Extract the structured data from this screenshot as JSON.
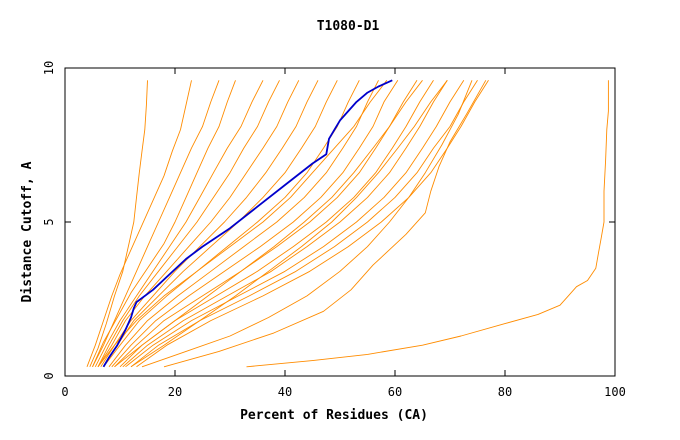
{
  "chart_data": {
    "type": "line",
    "title": "T1080-D1",
    "xlabel": "Percent of Residues (CA)",
    "ylabel": "Distance Cutoff, A",
    "xlim": [
      0,
      100
    ],
    "ylim": [
      0,
      10
    ],
    "xticks": [
      "0",
      "20",
      "40",
      "60",
      "80",
      "100"
    ],
    "yticks": [
      "0",
      "5",
      "10"
    ],
    "grid": false,
    "legend": "none",
    "colors": {
      "highlight": "#0000cc",
      "others": "#ff8c00"
    },
    "series": [
      {
        "role": "highlight",
        "x": [
          7,
          8,
          9.5,
          11,
          12,
          12.5,
          13,
          16,
          19,
          22,
          25,
          30,
          35,
          40,
          45,
          47.5,
          48,
          50,
          53,
          55,
          57,
          59.5
        ],
        "y": [
          0.3,
          0.6,
          1,
          1.5,
          1.9,
          2.2,
          2.4,
          2.8,
          3.3,
          3.8,
          4.2,
          4.8,
          5.5,
          6.2,
          6.9,
          7.2,
          7.7,
          8.3,
          8.9,
          9.2,
          9.4,
          9.6
        ]
      },
      {
        "role": "other",
        "x": [
          4.5,
          6,
          7.5,
          9,
          10.5,
          11.5,
          12.5,
          13,
          13.5,
          14,
          14.5,
          14.8,
          15
        ],
        "y": [
          0.3,
          0.9,
          1.7,
          2.6,
          3.4,
          4.2,
          5,
          5.8,
          6.6,
          7.3,
          8,
          8.8,
          9.6
        ]
      },
      {
        "role": "other",
        "x": [
          4,
          5.5,
          7,
          8.5,
          10,
          12,
          14,
          16,
          18,
          19.5,
          21,
          22,
          23
        ],
        "y": [
          0.3,
          1,
          1.8,
          2.6,
          3.3,
          4.1,
          4.9,
          5.7,
          6.5,
          7.3,
          8,
          8.8,
          9.6
        ]
      },
      {
        "role": "other",
        "x": [
          5,
          7,
          9,
          11,
          13,
          15,
          17,
          19,
          21,
          23,
          25,
          26.5,
          28
        ],
        "y": [
          0.3,
          1,
          1.8,
          2.6,
          3.4,
          4.2,
          5,
          5.8,
          6.6,
          7.4,
          8.1,
          8.9,
          9.6
        ]
      },
      {
        "role": "other",
        "x": [
          5,
          7,
          9.5,
          12,
          15,
          18,
          20,
          22,
          24,
          26,
          28,
          29.5,
          31
        ],
        "y": [
          0.3,
          1.1,
          1.9,
          2.7,
          3.5,
          4.3,
          5,
          5.8,
          6.6,
          7.4,
          8.1,
          8.9,
          9.6
        ]
      },
      {
        "role": "other",
        "x": [
          5.5,
          7.5,
          10,
          13,
          16,
          19,
          22,
          24.5,
          27,
          29.5,
          32,
          34,
          36
        ],
        "y": [
          0.3,
          1,
          1.8,
          2.6,
          3.4,
          4.2,
          5,
          5.8,
          6.6,
          7.4,
          8.1,
          8.9,
          9.6
        ]
      },
      {
        "role": "other",
        "x": [
          6,
          8,
          10.5,
          13.5,
          17,
          20.5,
          24,
          27,
          30,
          32.5,
          35,
          37,
          39
        ],
        "y": [
          0.3,
          1,
          1.8,
          2.6,
          3.4,
          4.2,
          5,
          5.8,
          6.6,
          7.4,
          8.1,
          8.9,
          9.6
        ]
      },
      {
        "role": "other",
        "x": [
          6,
          8.5,
          11,
          14.5,
          18.5,
          22.5,
          26.5,
          30,
          33,
          36,
          38.5,
          40.5,
          42.5
        ],
        "y": [
          0.3,
          1,
          1.8,
          2.6,
          3.4,
          4.2,
          5,
          5.8,
          6.6,
          7.4,
          8.1,
          8.9,
          9.6
        ]
      },
      {
        "role": "other",
        "x": [
          6.5,
          9,
          12,
          16,
          20,
          24.5,
          29,
          33,
          36.5,
          39.5,
          42,
          44,
          46
        ],
        "y": [
          0.3,
          1,
          1.8,
          2.6,
          3.4,
          4.2,
          5,
          5.8,
          6.6,
          7.4,
          8.1,
          8.9,
          9.6
        ]
      },
      {
        "role": "other",
        "x": [
          7,
          9.5,
          12.5,
          17,
          21.5,
          26.5,
          31.5,
          36,
          40,
          43,
          45.5,
          47.5,
          49.5
        ],
        "y": [
          0.3,
          1,
          1.8,
          2.6,
          3.4,
          4.2,
          5,
          5.8,
          6.6,
          7.4,
          8.1,
          8.9,
          9.6
        ]
      },
      {
        "role": "other",
        "x": [
          7,
          10,
          13.5,
          18.5,
          24,
          29.5,
          35,
          40,
          44,
          47,
          49.5,
          51.5,
          53.5
        ],
        "y": [
          0.3,
          1,
          1.8,
          2.6,
          3.4,
          4.2,
          5,
          5.8,
          6.6,
          7.4,
          8.1,
          8.9,
          9.6
        ]
      },
      {
        "role": "other",
        "x": [
          8,
          11,
          15,
          20.5,
          26.5,
          32.5,
          38.5,
          43.5,
          47.5,
          50.5,
          53,
          55,
          57
        ],
        "y": [
          0.3,
          1,
          1.8,
          2.6,
          3.4,
          4.2,
          5,
          5.8,
          6.6,
          7.4,
          8.1,
          8.9,
          9.6
        ]
      },
      {
        "role": "other",
        "x": [
          8.5,
          12,
          16.5,
          22.5,
          29,
          35.5,
          41.5,
          46.5,
          50.5,
          53.5,
          56,
          58,
          60.5
        ],
        "y": [
          0.3,
          1,
          1.8,
          2.6,
          3.4,
          4.2,
          5,
          5.8,
          6.6,
          7.4,
          8.1,
          8.9,
          9.6
        ]
      },
      {
        "role": "other",
        "x": [
          9,
          13,
          18,
          25,
          32,
          38.5,
          44.5,
          49.5,
          53.5,
          56.5,
          59,
          61.5,
          64
        ],
        "y": [
          0.3,
          1,
          1.8,
          2.6,
          3.4,
          4.2,
          5,
          5.8,
          6.6,
          7.4,
          8.1,
          8.9,
          9.6
        ]
      },
      {
        "role": "other",
        "x": [
          10,
          14,
          20,
          27.5,
          35,
          41.5,
          47.5,
          52.5,
          56.5,
          59.5,
          62,
          64.5,
          67
        ],
        "y": [
          0.3,
          1,
          1.8,
          2.6,
          3.4,
          4.2,
          5,
          5.8,
          6.6,
          7.4,
          8.1,
          8.9,
          9.6
        ]
      },
      {
        "role": "other",
        "x": [
          10.5,
          15,
          21.5,
          29.5,
          37.5,
          44,
          50,
          55,
          59,
          62,
          64.5,
          67,
          69.5
        ],
        "y": [
          0.3,
          1,
          1.8,
          2.6,
          3.4,
          4.2,
          5,
          5.8,
          6.6,
          7.4,
          8.1,
          8.9,
          9.6
        ]
      },
      {
        "role": "other",
        "x": [
          11,
          16,
          23,
          31.5,
          40,
          47,
          53,
          58,
          62,
          65,
          67.5,
          70,
          72.5
        ],
        "y": [
          0.3,
          1,
          1.8,
          2.6,
          3.4,
          4.2,
          5,
          5.8,
          6.6,
          7.4,
          8.1,
          8.9,
          9.6
        ]
      },
      {
        "role": "other",
        "x": [
          12,
          17,
          24.5,
          33.5,
          42,
          49,
          55,
          60,
          64,
          67,
          70,
          72.5,
          75
        ],
        "y": [
          0.3,
          1,
          1.8,
          2.6,
          3.4,
          4.2,
          5,
          5.8,
          6.6,
          7.4,
          8.1,
          8.9,
          9.6
        ]
      },
      {
        "role": "other",
        "x": [
          13,
          18.5,
          26.5,
          36,
          44.5,
          51.5,
          57.5,
          62.5,
          66.5,
          69.5,
          72,
          74.5,
          77
        ],
        "y": [
          0.3,
          1,
          1.8,
          2.6,
          3.4,
          4.2,
          5,
          5.8,
          6.6,
          7.4,
          8.1,
          8.9,
          9.6
        ]
      },
      {
        "role": "other",
        "x": [
          6,
          9,
          13,
          18,
          24,
          30,
          36,
          41,
          45,
          49,
          52.5,
          55.5,
          58.5
        ],
        "y": [
          0.3,
          1,
          1.8,
          2.6,
          3.4,
          4.2,
          5,
          5.8,
          6.6,
          7.4,
          8.1,
          8.9,
          9.6
        ]
      },
      {
        "role": "other",
        "x": [
          9,
          14,
          20,
          26,
          32,
          38,
          43.5,
          48.5,
          52.5,
          56,
          59,
          62,
          65
        ],
        "y": [
          0.3,
          1,
          1.8,
          2.6,
          3.4,
          4.2,
          5,
          5.8,
          6.6,
          7.4,
          8.1,
          8.9,
          9.6
        ]
      },
      {
        "role": "other",
        "x": [
          12,
          18,
          24.5,
          31,
          37,
          43,
          48.5,
          53,
          57,
          60.5,
          63.5,
          66.5,
          69.5
        ],
        "y": [
          0.3,
          1,
          1.8,
          2.6,
          3.4,
          4.2,
          5,
          5.8,
          6.6,
          7.4,
          8.1,
          8.9,
          9.6
        ]
      },
      {
        "role": "other",
        "x": [
          14,
          22,
          30,
          37,
          44,
          50,
          55,
          59,
          62.5,
          65.5,
          68.5,
          71.5,
          74
        ],
        "y": [
          0.3,
          0.8,
          1.3,
          1.9,
          2.6,
          3.4,
          4.2,
          5,
          5.8,
          6.6,
          7.5,
          8.5,
          9.6
        ]
      },
      {
        "role": "other",
        "x": [
          18,
          28,
          38,
          47,
          52,
          56,
          62,
          65.5,
          66.5,
          68,
          70,
          73,
          76.5
        ],
        "y": [
          0.3,
          0.8,
          1.4,
          2.1,
          2.8,
          3.6,
          4.6,
          5.3,
          6,
          6.8,
          7.6,
          8.5,
          9.6
        ]
      },
      {
        "role": "other",
        "x": [
          33,
          45,
          55,
          65,
          72,
          80,
          86,
          90,
          91.5,
          93,
          95,
          96.5,
          97,
          97.5,
          98,
          98,
          98.3,
          98.5,
          98.8,
          98.8
        ],
        "y": [
          0.3,
          0.5,
          0.7,
          1,
          1.3,
          1.7,
          2,
          2.3,
          2.6,
          2.9,
          3.1,
          3.5,
          4,
          4.5,
          5,
          6,
          7,
          8,
          8.6,
          9.6
        ]
      }
    ]
  }
}
